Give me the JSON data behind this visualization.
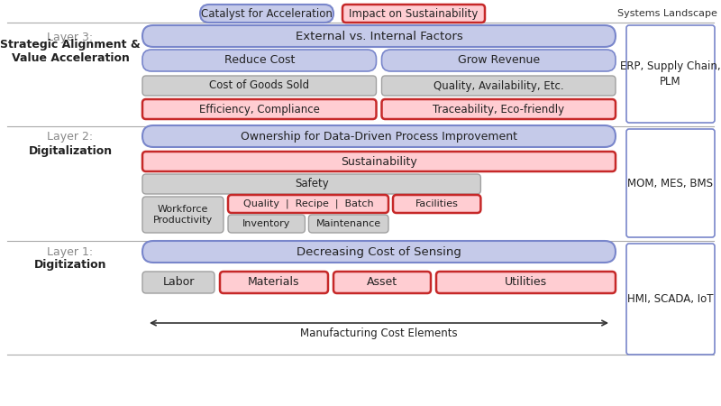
{
  "bg_color": "#ffffff",
  "blue_fill": "#c5cae9",
  "blue_edge": "#7986cb",
  "red_fill": "#ffcdd2",
  "red_edge": "#c62828",
  "gray_fill": "#d0d0d0",
  "gray_edge": "#a0a0a0",
  "sys_edge": "#7986cb",
  "divider_color": "#aaaaaa",
  "label_color": "#888888",
  "legend_blue_label": "Catalyst for Acceleration",
  "legend_red_label": "Impact on Sustainability",
  "systems_label": "Systems Landscape",
  "arrow_label": "Manufacturing Cost Elements",
  "l3_name": "Layer 3:",
  "l3_bold": "Strategic Alignment &\nValue Acceleration",
  "l3_bar": "External vs. Internal Factors",
  "l3_r2": [
    "Reduce Cost",
    "Grow Revenue"
  ],
  "l3_r3": [
    "Cost of Goods Sold",
    "Quality, Availability, Etc."
  ],
  "l3_r4": [
    "Efficiency, Compliance",
    "Traceability, Eco-friendly"
  ],
  "l3_sys": "ERP, Supply Chain,\nPLM",
  "l2_name": "Layer 2:",
  "l2_bold": "Digitalization",
  "l2_bar": "Ownership for Data-Driven Process Improvement",
  "l2_sustain": "Sustainability",
  "l2_safety": "Safety",
  "l2_wp": "Workforce\nProductivity",
  "l2_qrb": "Quality  |  Recipe  |  Batch",
  "l2_fac": "Facilities",
  "l2_inv": "Inventory",
  "l2_maint": "Maintenance",
  "l2_sys": "MOM, MES, BMS",
  "l1_name": "Layer 1:",
  "l1_bold": "Digitization",
  "l1_bar": "Decreasing Cost of Sensing",
  "l1_items": [
    {
      "text": "Labor",
      "style": "gray"
    },
    {
      "text": "Materials",
      "style": "red"
    },
    {
      "text": "Asset",
      "style": "red"
    },
    {
      "text": "Utilities",
      "style": "red"
    }
  ],
  "l1_sys": "HMI, SCADA, IoT"
}
